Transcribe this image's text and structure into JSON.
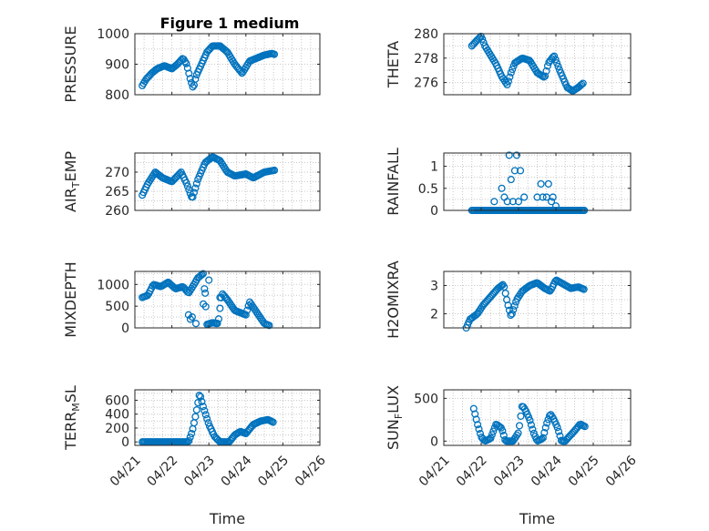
{
  "figure_title": "Figure 1 medium",
  "colors": {
    "marker": "#0072BD",
    "axis": "#262626",
    "grid": "#c8c8c8"
  },
  "chart_data": [
    {
      "type": "scatter",
      "id": "pressure",
      "title": "Figure 1 medium",
      "ylabel": "PRESSURE",
      "ylim": [
        800,
        1000
      ],
      "yticks": [
        800,
        900,
        1000
      ],
      "xlabel": "",
      "xlim": [
        0,
        5
      ],
      "xticks": [
        0,
        1,
        2,
        3,
        4,
        5
      ],
      "xticklabels": [],
      "grid": true,
      "anchors": [
        [
          0.2,
          830
        ],
        [
          0.3,
          850
        ],
        [
          0.45,
          870
        ],
        [
          0.6,
          885
        ],
        [
          0.8,
          895
        ],
        [
          1.0,
          885
        ],
        [
          1.15,
          900
        ],
        [
          1.3,
          920
        ],
        [
          1.4,
          900
        ],
        [
          1.5,
          850
        ],
        [
          1.58,
          820
        ],
        [
          1.65,
          860
        ],
        [
          1.8,
          900
        ],
        [
          1.95,
          940
        ],
        [
          2.1,
          960
        ],
        [
          2.3,
          960
        ],
        [
          2.5,
          940
        ],
        [
          2.7,
          900
        ],
        [
          2.9,
          870
        ],
        [
          3.1,
          910
        ],
        [
          3.3,
          920
        ],
        [
          3.5,
          930
        ],
        [
          3.7,
          935
        ],
        [
          3.78,
          932
        ]
      ]
    },
    {
      "type": "scatter",
      "id": "theta",
      "ylabel": "THETA",
      "ylim": [
        275,
        280
      ],
      "yticks": [
        276,
        278,
        280
      ],
      "xlabel": "",
      "xlim": [
        0,
        5
      ],
      "xticks": [
        0,
        1,
        2,
        3,
        4,
        5
      ],
      "xticklabels": [],
      "grid": true,
      "anchors": [
        [
          0.75,
          279.0
        ],
        [
          0.9,
          279.5
        ],
        [
          1.0,
          279.8
        ],
        [
          1.1,
          279.0
        ],
        [
          1.2,
          278.5
        ],
        [
          1.4,
          277.5
        ],
        [
          1.55,
          276.5
        ],
        [
          1.7,
          275.8
        ],
        [
          1.8,
          276.8
        ],
        [
          1.9,
          277.6
        ],
        [
          2.1,
          278.0
        ],
        [
          2.3,
          277.8
        ],
        [
          2.5,
          276.8
        ],
        [
          2.7,
          276.4
        ],
        [
          2.8,
          277.6
        ],
        [
          2.95,
          278.2
        ],
        [
          3.1,
          277.0
        ],
        [
          3.3,
          275.6
        ],
        [
          3.45,
          275.3
        ],
        [
          3.6,
          275.6
        ],
        [
          3.75,
          276.0
        ]
      ]
    },
    {
      "type": "scatter",
      "id": "air_temp",
      "ylabel": "AIR_TEMP",
      "ylim": [
        260,
        275
      ],
      "yticks": [
        260,
        265,
        270
      ],
      "xlabel": "",
      "xlim": [
        0,
        5
      ],
      "xticks": [
        0,
        1,
        2,
        3,
        4,
        5
      ],
      "xticklabels": [],
      "grid": true,
      "anchors": [
        [
          0.2,
          264
        ],
        [
          0.35,
          267
        ],
        [
          0.55,
          270
        ],
        [
          0.75,
          268.5
        ],
        [
          1.0,
          267.5
        ],
        [
          1.25,
          270
        ],
        [
          1.4,
          267
        ],
        [
          1.55,
          263
        ],
        [
          1.7,
          268
        ],
        [
          1.9,
          272.5
        ],
        [
          2.1,
          274
        ],
        [
          2.3,
          273
        ],
        [
          2.5,
          270
        ],
        [
          2.7,
          269
        ],
        [
          3.0,
          269.5
        ],
        [
          3.2,
          268.5
        ],
        [
          3.5,
          270
        ],
        [
          3.78,
          270.5
        ]
      ]
    },
    {
      "type": "scatter",
      "id": "rainfall",
      "ylabel": "RAINFALL",
      "ylim": [
        0,
        1.3
      ],
      "yticks": [
        0,
        0.5,
        1
      ],
      "xlabel": "",
      "xlim": [
        0,
        5
      ],
      "xticks": [
        0,
        1,
        2,
        3,
        4,
        5
      ],
      "xticklabels": [],
      "grid": true,
      "extra_points": [
        [
          1.35,
          0.2
        ],
        [
          1.55,
          0.5
        ],
        [
          1.62,
          0.3
        ],
        [
          1.7,
          0.2
        ],
        [
          1.75,
          1.25
        ],
        [
          1.8,
          0.7
        ],
        [
          1.85,
          0.2
        ],
        [
          1.9,
          0.9
        ],
        [
          1.95,
          1.25
        ],
        [
          2.0,
          0.2
        ],
        [
          2.05,
          0.9
        ],
        [
          2.15,
          0.3
        ],
        [
          2.5,
          0.3
        ],
        [
          2.6,
          0.6
        ],
        [
          2.65,
          0.3
        ],
        [
          2.75,
          0.3
        ],
        [
          2.8,
          0.6
        ],
        [
          2.88,
          0.2
        ],
        [
          2.92,
          0.3
        ],
        [
          3.0,
          0.1
        ]
      ],
      "anchors": [
        [
          0.75,
          0
        ],
        [
          3.78,
          0
        ]
      ]
    },
    {
      "type": "scatter",
      "id": "mixdepth",
      "ylabel": "MIXDEPTH",
      "ylim": [
        0,
        1300
      ],
      "yticks": [
        0,
        500,
        1000
      ],
      "xlabel": "",
      "xlim": [
        0,
        5
      ],
      "xticks": [
        0,
        1,
        2,
        3,
        4,
        5
      ],
      "xticklabels": [],
      "grid": true,
      "extra_points": [
        [
          1.45,
          300
        ],
        [
          1.5,
          200
        ],
        [
          1.55,
          250
        ],
        [
          1.65,
          100
        ],
        [
          1.85,
          550
        ],
        [
          1.9,
          800
        ],
        [
          2.0,
          1100
        ],
        [
          2.2,
          100
        ],
        [
          2.3,
          700
        ]
      ],
      "anchors": [
        [
          0.2,
          700
        ],
        [
          0.35,
          750
        ],
        [
          0.5,
          1000
        ],
        [
          0.7,
          950
        ],
        [
          0.9,
          1050
        ],
        [
          1.1,
          900
        ],
        [
          1.3,
          950
        ],
        [
          1.45,
          800
        ],
        [
          1.6,
          1000
        ],
        [
          1.7,
          1150
        ],
        [
          1.85,
          1250
        ],
        [
          1.95,
          80
        ],
        [
          2.1,
          120
        ],
        [
          2.25,
          100
        ],
        [
          2.35,
          800
        ],
        [
          2.5,
          650
        ],
        [
          2.7,
          400
        ],
        [
          2.85,
          350
        ],
        [
          3.0,
          300
        ],
        [
          3.1,
          600
        ],
        [
          3.3,
          350
        ],
        [
          3.5,
          100
        ],
        [
          3.65,
          50
        ]
      ]
    },
    {
      "type": "scatter",
      "id": "h2omixra",
      "ylabel": "H2OMIXRA",
      "ylim": [
        1.5,
        3.5
      ],
      "yticks": [
        2,
        3
      ],
      "xlabel": "",
      "xlim": [
        0,
        5
      ],
      "xticks": [
        0,
        1,
        2,
        3,
        4,
        5
      ],
      "xticklabels": [],
      "grid": true,
      "anchors": [
        [
          0.6,
          1.5
        ],
        [
          0.7,
          1.8
        ],
        [
          0.9,
          2.0
        ],
        [
          1.05,
          2.3
        ],
        [
          1.25,
          2.6
        ],
        [
          1.45,
          2.9
        ],
        [
          1.6,
          3.05
        ],
        [
          1.7,
          2.4
        ],
        [
          1.8,
          1.9
        ],
        [
          1.95,
          2.5
        ],
        [
          2.1,
          2.8
        ],
        [
          2.3,
          3.0
        ],
        [
          2.5,
          3.1
        ],
        [
          2.7,
          2.9
        ],
        [
          2.85,
          2.8
        ],
        [
          3.0,
          3.2
        ],
        [
          3.2,
          3.05
        ],
        [
          3.4,
          2.9
        ],
        [
          3.6,
          2.95
        ],
        [
          3.78,
          2.85
        ]
      ]
    },
    {
      "type": "scatter",
      "id": "terr_msl",
      "ylabel": "TERR_MSL",
      "ylim": [
        -50,
        750
      ],
      "yticks": [
        0,
        200,
        400,
        600
      ],
      "xlabel": "Time",
      "xlim": [
        0,
        5
      ],
      "xticks": [
        0,
        1,
        2,
        3,
        4,
        5
      ],
      "xticklabels": [
        "04/21",
        "04/22",
        "04/23",
        "04/24",
        "04/25",
        "04/26"
      ],
      "grid": true,
      "anchors": [
        [
          0.2,
          0
        ],
        [
          1.45,
          0
        ],
        [
          1.55,
          150
        ],
        [
          1.65,
          400
        ],
        [
          1.75,
          700
        ],
        [
          1.85,
          500
        ],
        [
          2.0,
          250
        ],
        [
          2.15,
          80
        ],
        [
          2.3,
          0
        ],
        [
          2.55,
          0
        ],
        [
          2.7,
          100
        ],
        [
          2.85,
          150
        ],
        [
          3.0,
          120
        ],
        [
          3.2,
          250
        ],
        [
          3.4,
          300
        ],
        [
          3.6,
          320
        ],
        [
          3.75,
          280
        ]
      ]
    },
    {
      "type": "scatter",
      "id": "sun_flux",
      "ylabel": "SUN_FLUX",
      "ylim": [
        -50,
        600
      ],
      "yticks": [
        0,
        500
      ],
      "xlabel": "Time",
      "xlim": [
        0,
        5
      ],
      "xticks": [
        0,
        1,
        2,
        3,
        4,
        5
      ],
      "xticklabels": [
        "04/21",
        "04/22",
        "04/23",
        "04/24",
        "04/25",
        "04/26"
      ],
      "grid": true,
      "anchors": [
        [
          0.8,
          380
        ],
        [
          0.9,
          200
        ],
        [
          1.0,
          50
        ],
        [
          1.1,
          0
        ],
        [
          1.25,
          30
        ],
        [
          1.4,
          200
        ],
        [
          1.55,
          150
        ],
        [
          1.65,
          0
        ],
        [
          1.85,
          0
        ],
        [
          2.0,
          100
        ],
        [
          2.1,
          420
        ],
        [
          2.2,
          350
        ],
        [
          2.3,
          250
        ],
        [
          2.4,
          100
        ],
        [
          2.5,
          0
        ],
        [
          2.65,
          30
        ],
        [
          2.75,
          200
        ],
        [
          2.85,
          320
        ],
        [
          2.95,
          250
        ],
        [
          3.05,
          150
        ],
        [
          3.15,
          0
        ],
        [
          3.25,
          0
        ],
        [
          3.35,
          50
        ],
        [
          3.5,
          120
        ],
        [
          3.65,
          200
        ],
        [
          3.78,
          170
        ]
      ]
    }
  ]
}
